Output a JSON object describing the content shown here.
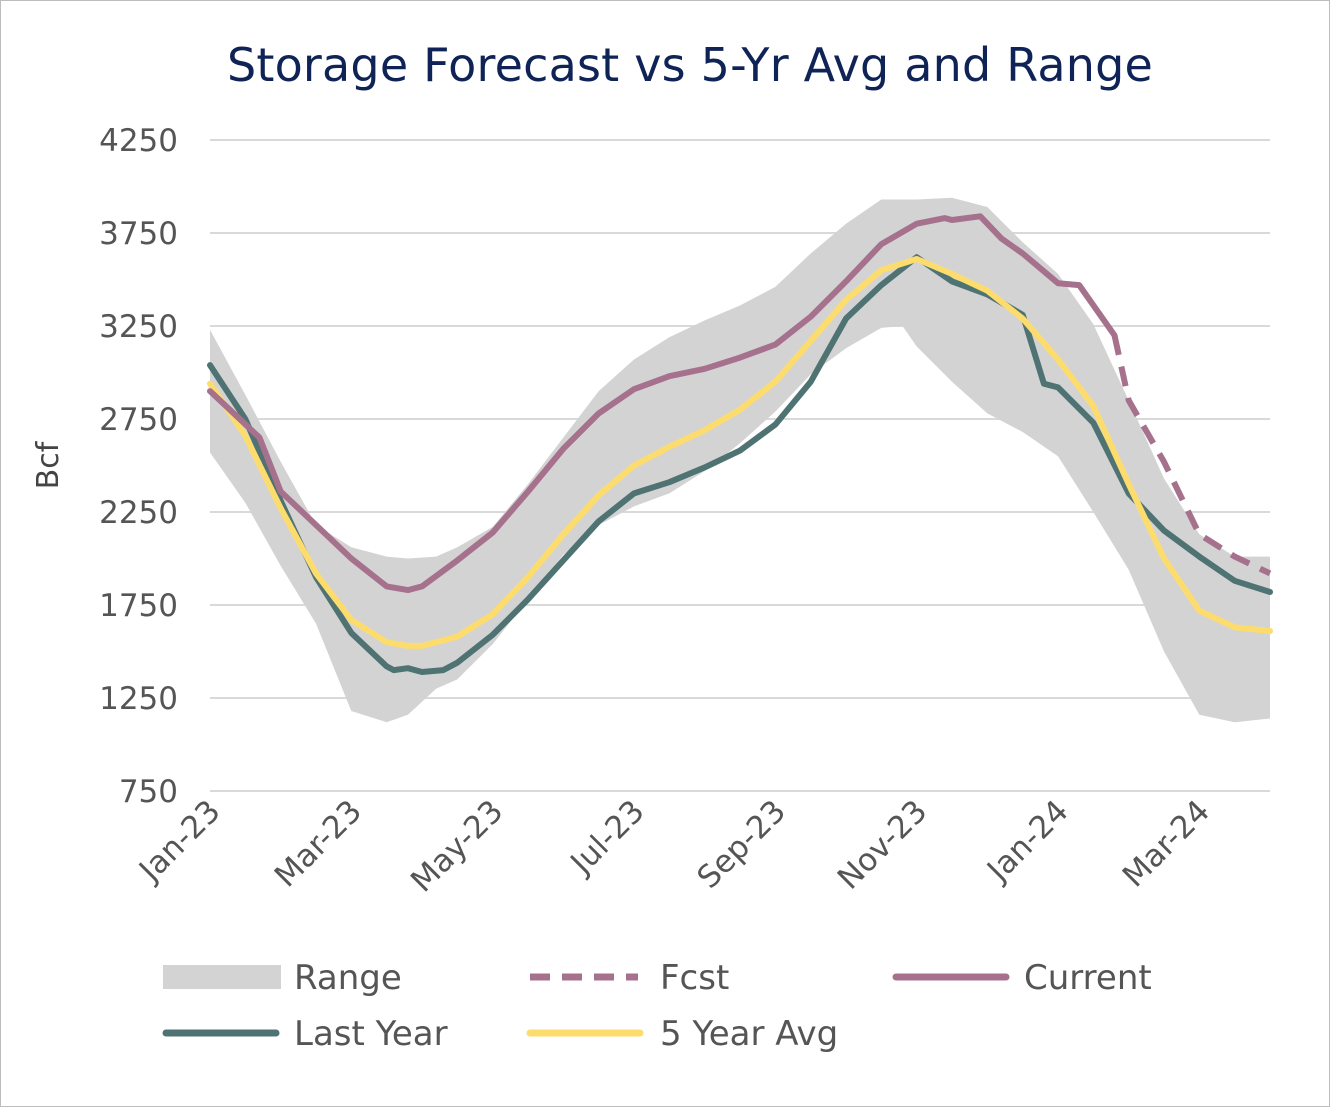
{
  "chart_data": {
    "type": "line",
    "title": "Storage Forecast vs 5-Yr Avg and Range",
    "ylabel": "Bcf",
    "xlabel": "",
    "ylim": [
      750,
      4250
    ],
    "yticks": [
      "4250",
      "3750",
      "3250",
      "2750",
      "2250",
      "1750",
      "1250",
      "750"
    ],
    "xticks": [
      "Jan-23",
      "Mar-23",
      "May-23",
      "Jul-23",
      "Sep-23",
      "Nov-23",
      "Jan-24",
      "Mar-24"
    ],
    "x_start_month": 0,
    "x_end_month": 15.0,
    "colors": {
      "range": "#d4d3d4",
      "fcst": "#a6718d",
      "current": "#a6718d",
      "last_year": "#4f7372",
      "avg5": "#fddc6e",
      "grid": "#d9d9d9",
      "title": "#0f2356"
    },
    "legend": {
      "range": "Range",
      "fcst": "Fcst",
      "current": "Current",
      "last_year": "Last Year",
      "avg5": "5 Year Avg"
    },
    "series": [
      {
        "name": "Range Upper",
        "key": "range_upper",
        "points": [
          [
            0.0,
            3230
          ],
          [
            0.5,
            2880
          ],
          [
            1.0,
            2520
          ],
          [
            1.5,
            2180
          ],
          [
            2.0,
            2060
          ],
          [
            2.5,
            2010
          ],
          [
            2.8,
            2000
          ],
          [
            3.2,
            2010
          ],
          [
            3.5,
            2060
          ],
          [
            4.0,
            2170
          ],
          [
            4.5,
            2400
          ],
          [
            5.0,
            2650
          ],
          [
            5.5,
            2900
          ],
          [
            6.0,
            3070
          ],
          [
            6.5,
            3190
          ],
          [
            7.0,
            3280
          ],
          [
            7.5,
            3360
          ],
          [
            8.0,
            3460
          ],
          [
            8.5,
            3640
          ],
          [
            9.0,
            3800
          ],
          [
            9.5,
            3930
          ],
          [
            10.0,
            3930
          ],
          [
            10.5,
            3940
          ],
          [
            11.0,
            3890
          ],
          [
            11.5,
            3700
          ],
          [
            12.0,
            3530
          ],
          [
            12.5,
            3260
          ],
          [
            13.0,
            2850
          ],
          [
            13.5,
            2430
          ],
          [
            14.0,
            2130
          ],
          [
            14.5,
            2010
          ],
          [
            15.0,
            2010
          ]
        ]
      },
      {
        "name": "Range Lower",
        "key": "range_lower",
        "points": [
          [
            0.0,
            2570
          ],
          [
            0.5,
            2300
          ],
          [
            1.0,
            1960
          ],
          [
            1.5,
            1650
          ],
          [
            2.0,
            1180
          ],
          [
            2.5,
            1120
          ],
          [
            2.8,
            1160
          ],
          [
            3.2,
            1300
          ],
          [
            3.5,
            1350
          ],
          [
            4.0,
            1540
          ],
          [
            4.5,
            1780
          ],
          [
            5.0,
            2020
          ],
          [
            5.5,
            2180
          ],
          [
            6.0,
            2280
          ],
          [
            6.5,
            2350
          ],
          [
            7.0,
            2470
          ],
          [
            7.5,
            2620
          ],
          [
            8.0,
            2790
          ],
          [
            8.5,
            2990
          ],
          [
            9.0,
            3130
          ],
          [
            9.5,
            3240
          ],
          [
            9.8,
            3250
          ],
          [
            10.0,
            3140
          ],
          [
            10.5,
            2950
          ],
          [
            11.0,
            2780
          ],
          [
            11.5,
            2680
          ],
          [
            12.0,
            2550
          ],
          [
            12.5,
            2250
          ],
          [
            13.0,
            1940
          ],
          [
            13.5,
            1500
          ],
          [
            14.0,
            1160
          ],
          [
            14.5,
            1120
          ],
          [
            15.0,
            1140
          ]
        ]
      },
      {
        "name": "Current",
        "key": "current",
        "points": [
          [
            0.0,
            2900
          ],
          [
            0.7,
            2650
          ],
          [
            1.0,
            2360
          ],
          [
            1.5,
            2180
          ],
          [
            2.0,
            2000
          ],
          [
            2.5,
            1850
          ],
          [
            2.8,
            1830
          ],
          [
            3.0,
            1850
          ],
          [
            3.5,
            1990
          ],
          [
            4.0,
            2140
          ],
          [
            4.5,
            2360
          ],
          [
            5.0,
            2590
          ],
          [
            5.5,
            2780
          ],
          [
            6.0,
            2910
          ],
          [
            6.5,
            2980
          ],
          [
            7.0,
            3020
          ],
          [
            7.5,
            3080
          ],
          [
            8.0,
            3150
          ],
          [
            8.5,
            3300
          ],
          [
            9.0,
            3490
          ],
          [
            9.5,
            3690
          ],
          [
            10.0,
            3800
          ],
          [
            10.4,
            3830
          ],
          [
            10.5,
            3820
          ],
          [
            10.9,
            3840
          ],
          [
            11.2,
            3720
          ],
          [
            11.5,
            3640
          ],
          [
            12.0,
            3480
          ],
          [
            12.3,
            3470
          ],
          [
            12.8,
            3200
          ]
        ]
      },
      {
        "name": "Fcst",
        "key": "fcst",
        "points": [
          [
            12.8,
            3200
          ],
          [
            13.0,
            2850
          ],
          [
            13.5,
            2520
          ],
          [
            14.0,
            2130
          ],
          [
            14.5,
            2010
          ],
          [
            15.0,
            1920
          ]
        ]
      },
      {
        "name": "Last Year",
        "key": "last_year",
        "points": [
          [
            0.0,
            3040
          ],
          [
            0.5,
            2750
          ],
          [
            1.0,
            2310
          ],
          [
            1.5,
            1900
          ],
          [
            2.0,
            1600
          ],
          [
            2.5,
            1420
          ],
          [
            2.6,
            1400
          ],
          [
            2.8,
            1410
          ],
          [
            3.0,
            1390
          ],
          [
            3.3,
            1400
          ],
          [
            3.5,
            1440
          ],
          [
            4.0,
            1590
          ],
          [
            4.5,
            1780
          ],
          [
            5.0,
            1990
          ],
          [
            5.5,
            2200
          ],
          [
            6.0,
            2350
          ],
          [
            6.5,
            2410
          ],
          [
            7.0,
            2490
          ],
          [
            7.5,
            2580
          ],
          [
            8.0,
            2720
          ],
          [
            8.5,
            2950
          ],
          [
            9.0,
            3290
          ],
          [
            9.5,
            3470
          ],
          [
            10.0,
            3620
          ],
          [
            10.5,
            3490
          ],
          [
            11.0,
            3420
          ],
          [
            11.5,
            3310
          ],
          [
            11.8,
            2940
          ],
          [
            12.0,
            2920
          ],
          [
            12.5,
            2730
          ],
          [
            13.0,
            2350
          ],
          [
            13.5,
            2150
          ],
          [
            14.0,
            2010
          ],
          [
            14.5,
            1880
          ],
          [
            15.0,
            1820
          ]
        ]
      },
      {
        "name": "5 Year Avg",
        "key": "avg5",
        "points": [
          [
            0.0,
            2940
          ],
          [
            0.5,
            2660
          ],
          [
            1.0,
            2270
          ],
          [
            1.5,
            1920
          ],
          [
            2.0,
            1670
          ],
          [
            2.5,
            1550
          ],
          [
            2.8,
            1530
          ],
          [
            3.0,
            1530
          ],
          [
            3.5,
            1580
          ],
          [
            4.0,
            1700
          ],
          [
            4.5,
            1900
          ],
          [
            5.0,
            2130
          ],
          [
            5.5,
            2340
          ],
          [
            6.0,
            2500
          ],
          [
            6.5,
            2600
          ],
          [
            7.0,
            2690
          ],
          [
            7.5,
            2800
          ],
          [
            8.0,
            2950
          ],
          [
            8.5,
            3170
          ],
          [
            9.0,
            3390
          ],
          [
            9.5,
            3550
          ],
          [
            10.0,
            3610
          ],
          [
            10.5,
            3530
          ],
          [
            11.0,
            3440
          ],
          [
            11.5,
            3290
          ],
          [
            12.0,
            3070
          ],
          [
            12.5,
            2820
          ],
          [
            13.0,
            2400
          ],
          [
            13.5,
            2000
          ],
          [
            14.0,
            1720
          ],
          [
            14.5,
            1630
          ],
          [
            15.0,
            1610
          ]
        ]
      }
    ]
  }
}
